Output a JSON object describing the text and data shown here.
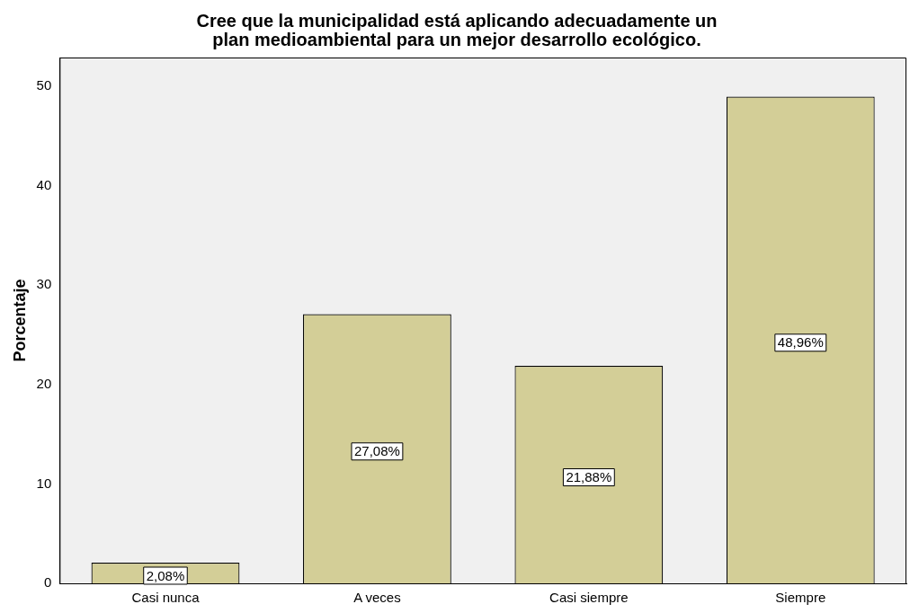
{
  "chart_data": {
    "type": "bar",
    "title": "Cree que la municipalidad está aplicando adecuadamente un plan medioambiental para un mejor desarrollo ecológico.",
    "ylabel": "Porcentaje",
    "categories": [
      "Casi nunca",
      "A veces",
      "Casi siempre",
      "Siempre"
    ],
    "values": [
      2.08,
      27.08,
      21.88,
      48.96
    ],
    "value_labels": [
      "2,08%",
      "27,08%",
      "21,88%",
      "48,96%"
    ],
    "color": "#d3ce97",
    "ylim": [
      0,
      52.9
    ],
    "yticks": [
      0,
      10,
      20,
      30,
      40,
      50
    ],
    "grid": false,
    "legend": false
  }
}
